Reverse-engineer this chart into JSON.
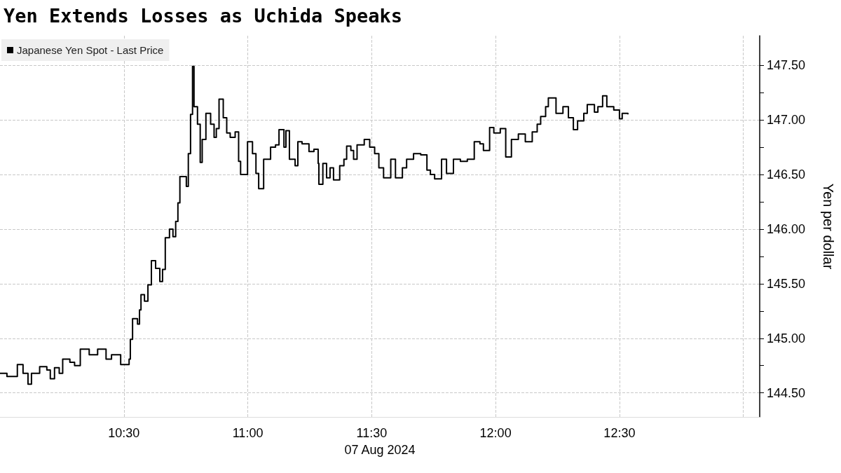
{
  "chart_data": {
    "type": "step",
    "title": "Yen Extends Losses as Uchida Speaks",
    "xlabel": "07 Aug 2024",
    "ylabel": "Yen per dollar",
    "xlim": [
      10.0,
      13.066
    ],
    "ylim": [
      144.28,
      147.77
    ],
    "xticks": [
      {
        "value": 10.5,
        "label": "10:30"
      },
      {
        "value": 11,
        "label": "11:00"
      },
      {
        "value": 11.5,
        "label": "11:30"
      },
      {
        "value": 12,
        "label": "12:00"
      },
      {
        "value": 12.5,
        "label": "12:30"
      },
      {
        "value": 13,
        "label": null
      }
    ],
    "yticks": [
      {
        "value": 144.5,
        "label": "144.50"
      },
      {
        "value": 144.75,
        "label": null
      },
      {
        "value": 145,
        "label": "145.00"
      },
      {
        "value": 145.25,
        "label": null
      },
      {
        "value": 145.5,
        "label": "145.50"
      },
      {
        "value": 145.75,
        "label": null
      },
      {
        "value": 146,
        "label": "146.00"
      },
      {
        "value": 146.25,
        "label": null
      },
      {
        "value": 146.5,
        "label": "146.50"
      },
      {
        "value": 146.75,
        "label": null
      },
      {
        "value": 147,
        "label": "147.00"
      },
      {
        "value": 147.25,
        "label": null
      },
      {
        "value": 147.5,
        "label": "147.50"
      }
    ],
    "grid": true,
    "legend": "top left",
    "line_style": "solid",
    "marker": "none",
    "series": [
      {
        "name": "Japanese Yen Spot - Last Price",
        "color": "#000000",
        "x": [
          10.0,
          10.028,
          10.07,
          10.093,
          10.113,
          10.127,
          10.16,
          10.189,
          10.203,
          10.22,
          10.239,
          10.253,
          10.282,
          10.301,
          10.324,
          10.36,
          10.394,
          10.428,
          10.45,
          10.487,
          10.507,
          10.521,
          10.526,
          10.535,
          10.555,
          10.563,
          10.569,
          10.583,
          10.597,
          10.611,
          10.628,
          10.645,
          10.656,
          10.667,
          10.684,
          10.698,
          10.709,
          10.718,
          10.726,
          10.752,
          10.76,
          10.769,
          10.777,
          10.783,
          10.797,
          10.808,
          10.816,
          10.831,
          10.85,
          10.864,
          10.873,
          10.884,
          10.901,
          10.915,
          10.929,
          10.949,
          10.963,
          10.971,
          10.999,
          11.019,
          11.033,
          11.044,
          11.064,
          11.092,
          11.112,
          11.126,
          11.146,
          11.154,
          11.168,
          11.191,
          11.202,
          11.219,
          11.247,
          11.267,
          11.284,
          11.287,
          11.303,
          11.318,
          11.332,
          11.346,
          11.371,
          11.388,
          11.399,
          11.416,
          11.427,
          11.441,
          11.47,
          11.492,
          11.512,
          11.529,
          11.548,
          11.577,
          11.596,
          11.624,
          11.641,
          11.669,
          11.698,
          11.723,
          11.737,
          11.754,
          11.782,
          11.802,
          11.83,
          11.858,
          11.886,
          11.914,
          11.937,
          11.951,
          11.976,
          11.993,
          12.019,
          12.041,
          12.064,
          12.092,
          12.12,
          12.148,
          12.168,
          12.182,
          12.202,
          12.213,
          12.244,
          12.272,
          12.294,
          12.314,
          12.331,
          12.356,
          12.37,
          12.399,
          12.413,
          12.432,
          12.449,
          12.477,
          12.5,
          12.511,
          12.534
        ],
        "values": [
          144.68,
          144.65,
          144.76,
          144.68,
          144.58,
          144.68,
          144.74,
          144.71,
          144.63,
          144.73,
          144.68,
          144.81,
          144.78,
          144.75,
          144.9,
          144.85,
          144.9,
          144.81,
          144.85,
          144.76,
          144.76,
          144.81,
          144.99,
          145.18,
          145.13,
          145.26,
          145.4,
          145.34,
          145.49,
          145.71,
          145.64,
          145.52,
          145.63,
          145.92,
          146.0,
          145.93,
          146.07,
          146.24,
          146.48,
          146.39,
          146.69,
          147.05,
          147.49,
          147.12,
          146.96,
          146.61,
          146.82,
          147.06,
          146.96,
          146.84,
          146.92,
          147.19,
          147.02,
          146.88,
          146.84,
          146.89,
          146.62,
          146.5,
          146.8,
          146.69,
          146.51,
          146.37,
          146.64,
          146.75,
          146.77,
          146.91,
          146.75,
          146.9,
          146.64,
          146.58,
          146.8,
          146.78,
          146.71,
          146.73,
          146.6,
          146.41,
          146.6,
          146.47,
          146.56,
          146.45,
          146.58,
          146.64,
          146.76,
          146.72,
          146.64,
          146.77,
          146.82,
          146.75,
          146.69,
          146.56,
          146.47,
          146.64,
          146.47,
          146.56,
          146.64,
          146.69,
          146.68,
          146.54,
          146.5,
          146.46,
          146.64,
          146.51,
          146.64,
          146.62,
          146.64,
          146.8,
          146.78,
          146.72,
          146.93,
          146.88,
          146.92,
          146.66,
          146.82,
          146.87,
          146.8,
          146.89,
          146.96,
          147.03,
          147.12,
          147.2,
          147.06,
          147.12,
          147.02,
          146.91,
          146.99,
          147.06,
          147.14,
          147.07,
          147.12,
          147.22,
          147.12,
          147.09,
          147.01,
          147.06,
          147.05
        ]
      }
    ]
  }
}
